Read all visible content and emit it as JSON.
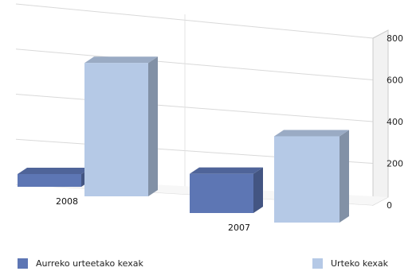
{
  "chart_data": {
    "type": "bar",
    "categories": [
      "2008",
      "2007"
    ],
    "series": [
      {
        "name": "Aurreko urteetako kexak",
        "values": [
          65,
          200
        ],
        "color": "#5d76b4"
      },
      {
        "name": "Urteko kexak",
        "values": [
          680,
          440
        ],
        "color": "#b5c9e6"
      }
    ],
    "ylim": [
      0,
      800
    ],
    "yticks": [
      0,
      200,
      400,
      600,
      800
    ],
    "grid": true,
    "legend_position": "bottom",
    "view": "3d"
  },
  "legend": {
    "items": [
      {
        "label": "Aurreko urteetako kexak",
        "color": "#5d76b4"
      },
      {
        "label": "Urteko kexak",
        "color": "#b5c9e6"
      }
    ]
  }
}
